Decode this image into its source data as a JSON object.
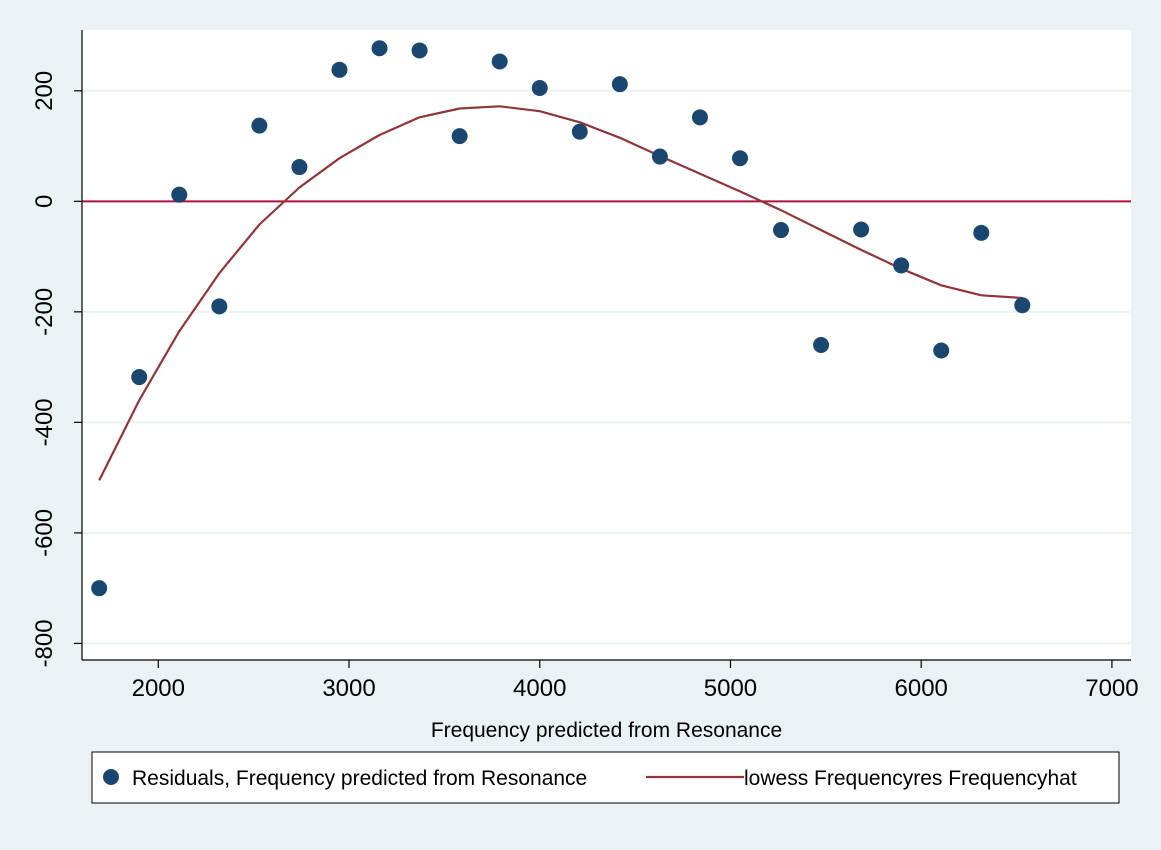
{
  "chart_data": {
    "type": "scatter",
    "title": "",
    "xlabel": "Frequency predicted from Resonance",
    "ylabel": "",
    "xlim": [
      1600,
      7100
    ],
    "ylim": [
      -830,
      310
    ],
    "xticks": [
      2000,
      3000,
      4000,
      5000,
      6000,
      7000
    ],
    "yticks": [
      -800,
      -600,
      -400,
      -200,
      0,
      200
    ],
    "xtick_labels": [
      "2000",
      "3000",
      "4000",
      "5000",
      "6000",
      "7000"
    ],
    "ytick_labels": [
      "-800",
      "-600",
      "-400",
      "-200",
      "0",
      "200"
    ],
    "grid": "horizontal",
    "reference_line": {
      "y": 0,
      "color": "#b0143c"
    },
    "legend": {
      "position": "bottom"
    },
    "series": [
      {
        "name": "Residuals, Frequency predicted from Resonance",
        "kind": "scatter",
        "color": "#1a476f",
        "points": [
          [
            1690,
            -700
          ],
          [
            1900,
            -318
          ],
          [
            2110,
            12
          ],
          [
            2320,
            -190
          ],
          [
            2530,
            137
          ],
          [
            2740,
            62
          ],
          [
            2950,
            238
          ],
          [
            3160,
            277
          ],
          [
            3370,
            273
          ],
          [
            3580,
            118
          ],
          [
            3790,
            253
          ],
          [
            4000,
            205
          ],
          [
            4210,
            126
          ],
          [
            4420,
            212
          ],
          [
            4630,
            81
          ],
          [
            4840,
            152
          ],
          [
            5050,
            78
          ],
          [
            5265,
            -52
          ],
          [
            5475,
            -260
          ],
          [
            5685,
            -51
          ],
          [
            5895,
            -116
          ],
          [
            6105,
            -270
          ],
          [
            6315,
            -57
          ],
          [
            6530,
            -188
          ]
        ]
      },
      {
        "name": "lowess Frequencyres Frequencyhat",
        "kind": "line",
        "color": "#90353b",
        "points": [
          [
            1690,
            -505
          ],
          [
            1900,
            -360
          ],
          [
            2110,
            -235
          ],
          [
            2320,
            -130
          ],
          [
            2530,
            -42
          ],
          [
            2740,
            25
          ],
          [
            2950,
            78
          ],
          [
            3160,
            120
          ],
          [
            3370,
            152
          ],
          [
            3580,
            168
          ],
          [
            3790,
            172
          ],
          [
            4000,
            163
          ],
          [
            4210,
            143
          ],
          [
            4420,
            115
          ],
          [
            4630,
            82
          ],
          [
            4840,
            50
          ],
          [
            5050,
            18
          ],
          [
            5265,
            -16
          ],
          [
            5475,
            -52
          ],
          [
            5685,
            -88
          ],
          [
            5895,
            -122
          ],
          [
            6105,
            -152
          ],
          [
            6315,
            -170
          ],
          [
            6530,
            -175
          ]
        ]
      }
    ]
  }
}
